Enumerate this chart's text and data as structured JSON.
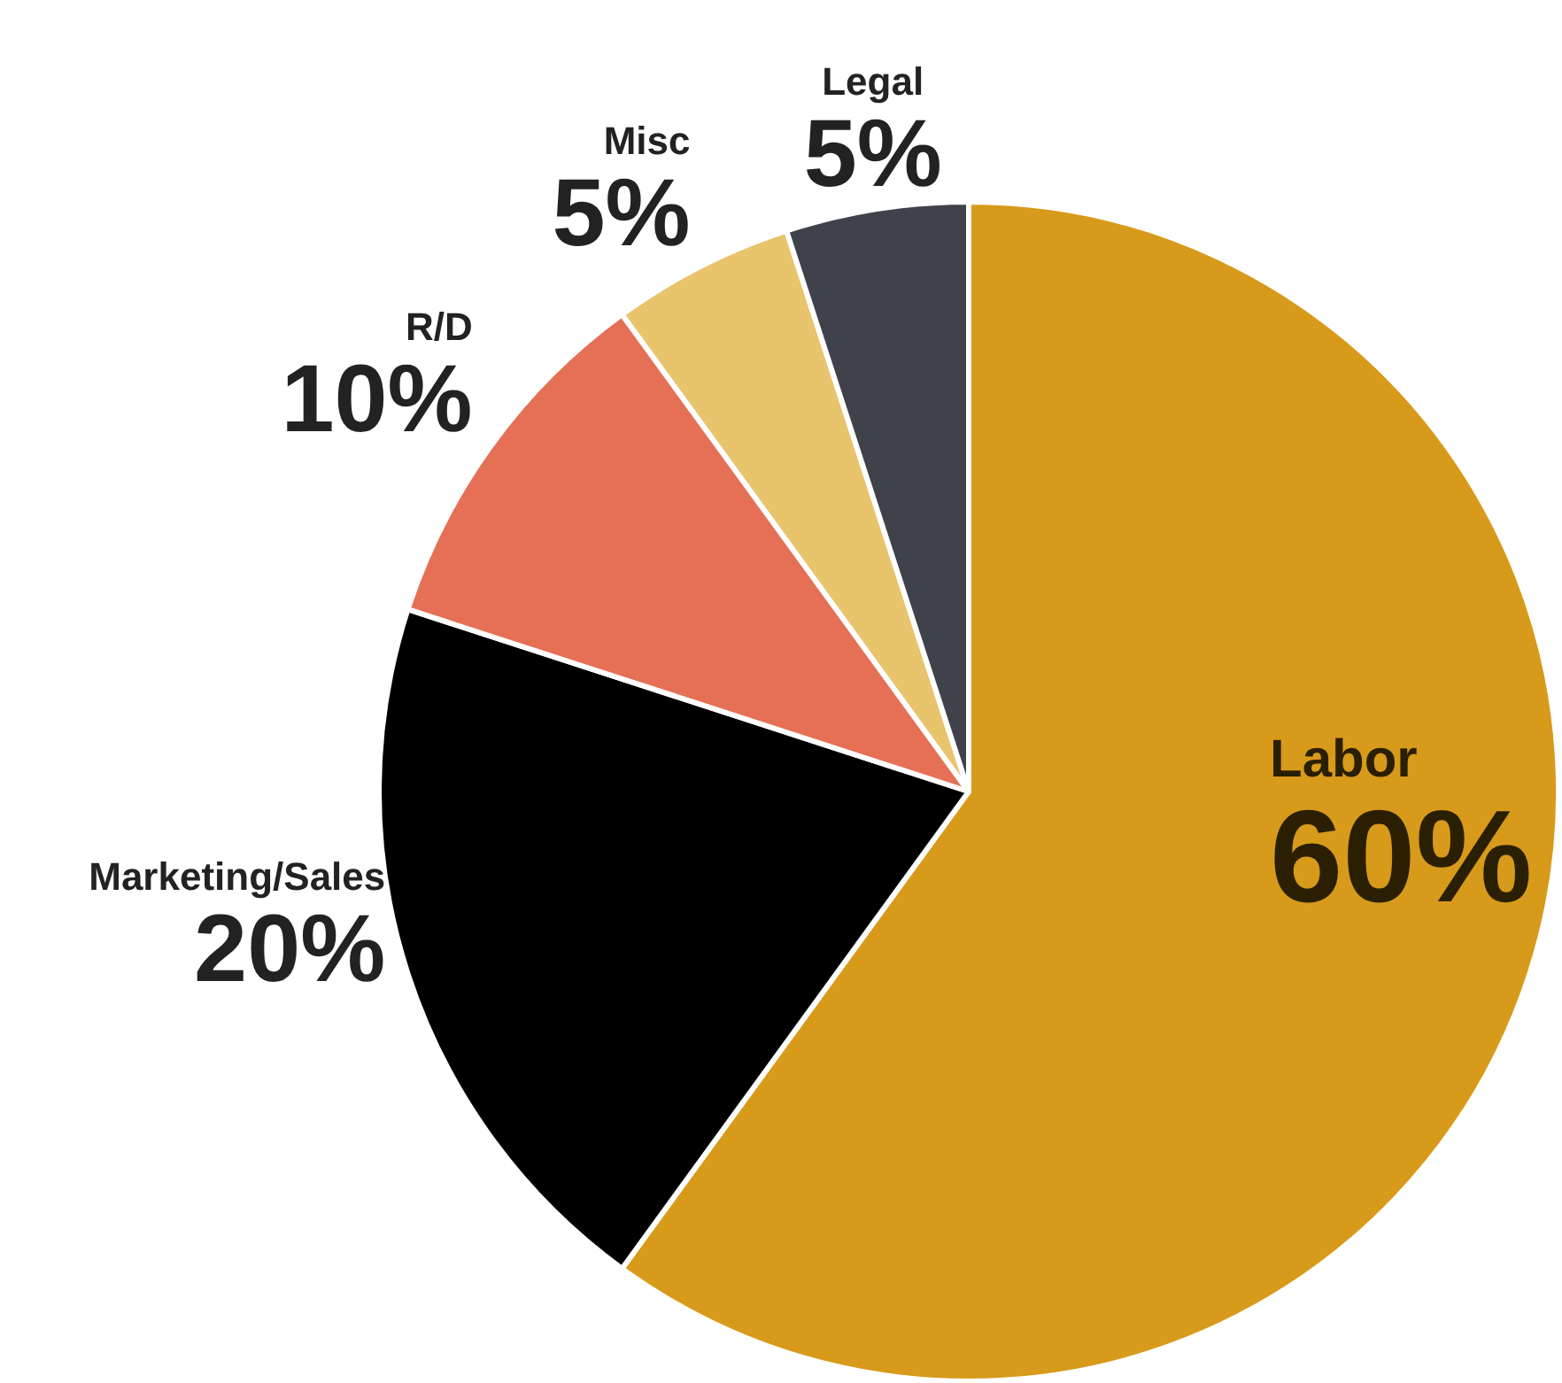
{
  "chart_data": {
    "type": "pie",
    "categories": [
      "Labor",
      "Marketing/Sales",
      "R/D",
      "Misc",
      "Legal"
    ],
    "values": [
      60,
      20,
      10,
      5,
      5
    ],
    "colors": [
      "#d89a1a",
      "#000000",
      "#e57055",
      "#e8c46c",
      "#3f424b"
    ],
    "value_labels": [
      "60%",
      "20%",
      "10%",
      "5%",
      "5%"
    ]
  }
}
